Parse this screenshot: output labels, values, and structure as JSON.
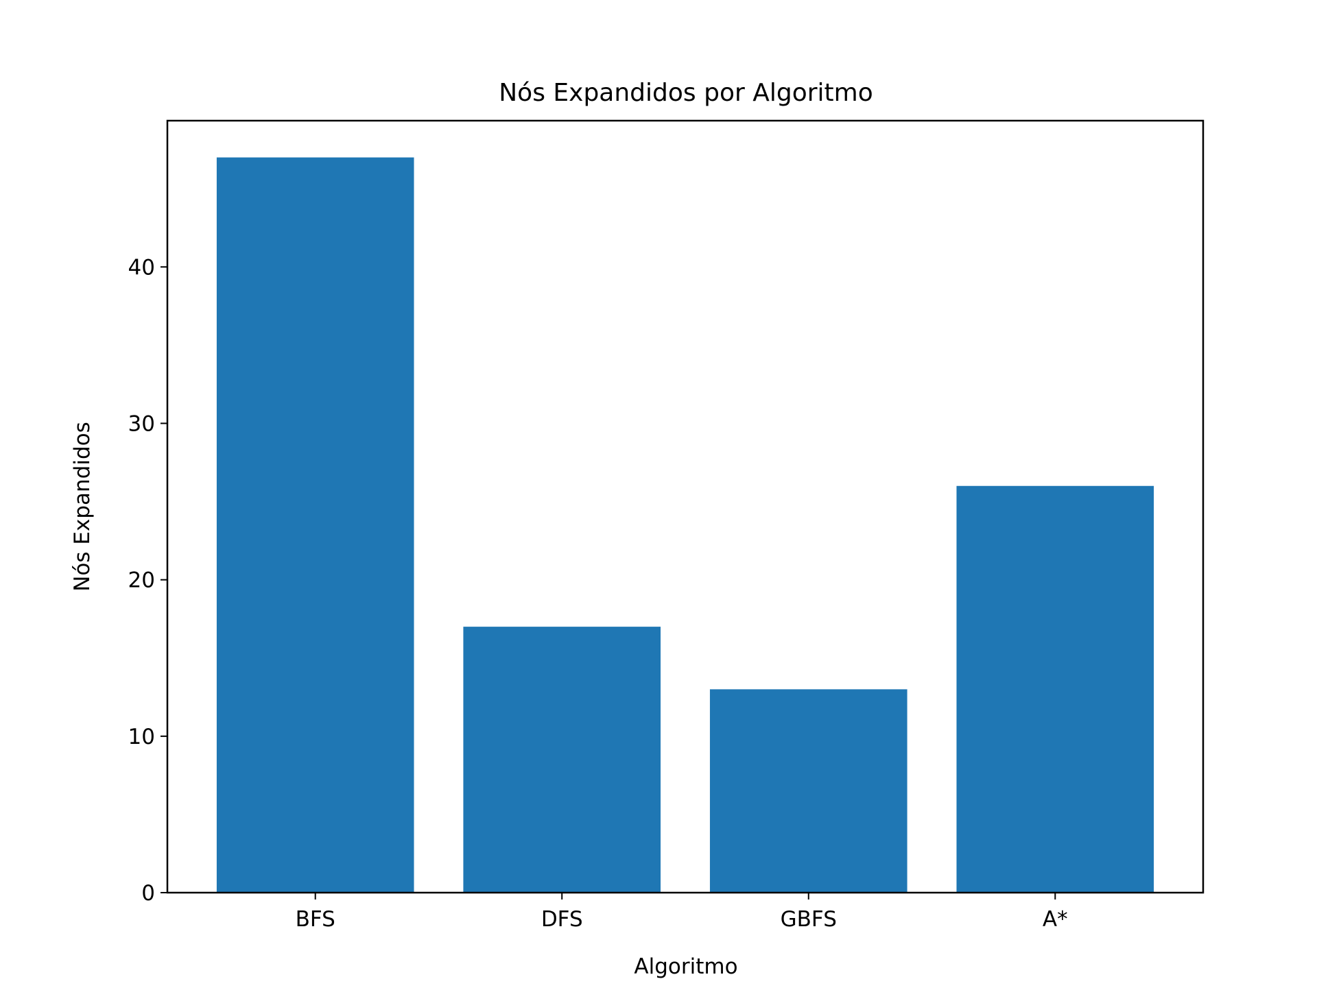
{
  "chart_data": {
    "type": "bar",
    "title": "Nós Expandidos por Algoritmo",
    "xlabel": "Algoritmo",
    "ylabel": "Nós Expandidos",
    "categories": [
      "BFS",
      "DFS",
      "GBFS",
      "A*"
    ],
    "values": [
      47,
      17,
      13,
      26
    ],
    "ylim": [
      0,
      49.35
    ],
    "yticks": [
      0,
      10,
      20,
      30,
      40
    ],
    "grid": false,
    "bar_color": "#1f77b4"
  }
}
